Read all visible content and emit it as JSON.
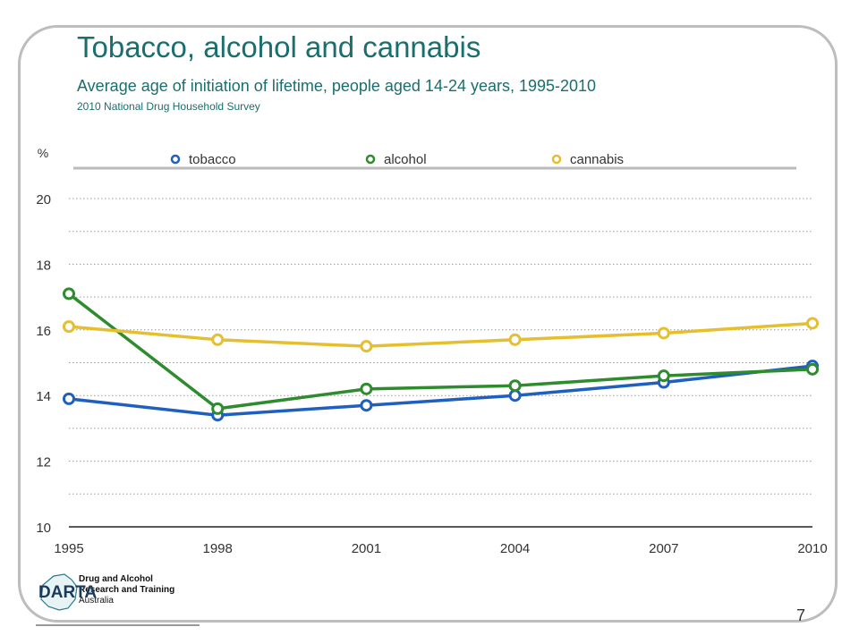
{
  "slide": {
    "title": "Tobacco, alcohol and cannabis",
    "subtitle": "Average age of initiation of lifetime, people aged 14-24 years, 1995-2010",
    "source": "2010 National Drug Household Survey",
    "page_number": "7"
  },
  "logo": {
    "name": "DARTA",
    "line1": "Drug and Alcohol",
    "line2": "Research and Training",
    "line3": "Australia"
  },
  "chart_data": {
    "type": "line",
    "x": [
      "1995",
      "1998",
      "2001",
      "2004",
      "2007",
      "2010"
    ],
    "series": [
      {
        "name": "tobacco",
        "color": "#1f5fbf",
        "values": [
          13.9,
          13.4,
          13.7,
          14.0,
          14.4,
          14.9
        ]
      },
      {
        "name": "alcohol",
        "color": "#2e8b2e",
        "values": [
          17.1,
          13.6,
          14.2,
          14.3,
          14.6,
          14.8
        ]
      },
      {
        "name": "cannabis",
        "color": "#e6bf2e",
        "values": [
          16.1,
          15.7,
          15.5,
          15.7,
          15.9,
          16.2
        ]
      }
    ],
    "ylabel": "%",
    "ylim": [
      10,
      20
    ],
    "yticks": [
      "10",
      "12",
      "14",
      "16",
      "18",
      "20"
    ],
    "grid": true,
    "legend_position": "top"
  }
}
